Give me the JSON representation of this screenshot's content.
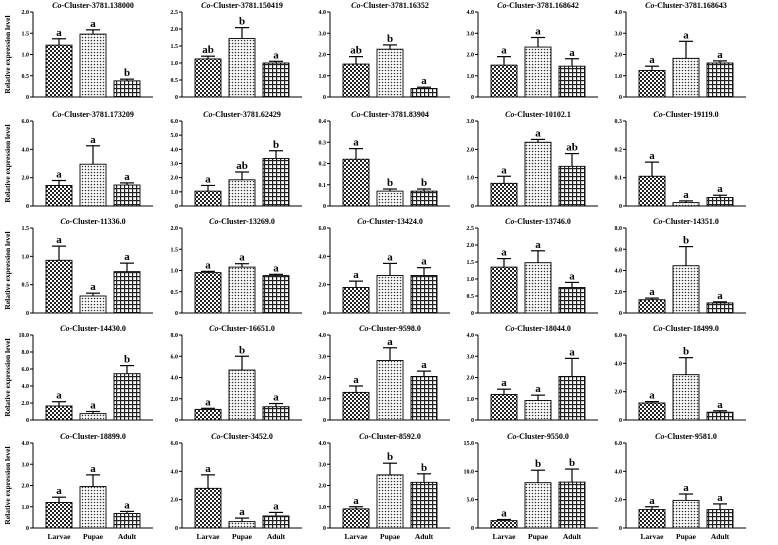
{
  "figure": {
    "ylabel": "Relative expression level",
    "categories": [
      "Larvae",
      "Pupae",
      "Adult"
    ]
  },
  "chart_data": [
    {
      "type": "bar",
      "title_prefix": "Co",
      "title_suffix": "-Cluster-3781.138000",
      "categories": [
        "Larvae",
        "Pupae",
        "Adult"
      ],
      "values": [
        1.22,
        1.48,
        0.38
      ],
      "errors": [
        0.15,
        0.1,
        0.04
      ],
      "letters": [
        "a",
        "a",
        "b"
      ],
      "ylim": [
        0,
        2.0
      ],
      "ticks": [
        "0",
        "0.5",
        "1.0",
        "1.5",
        "2.0"
      ]
    },
    {
      "type": "bar",
      "title_prefix": "Co",
      "title_suffix": "-Cluster-3781.150419",
      "categories": [
        "Larvae",
        "Pupae",
        "Adult"
      ],
      "values": [
        1.12,
        1.72,
        1.0
      ],
      "errors": [
        0.08,
        0.32,
        0.05
      ],
      "letters": [
        "ab",
        "b",
        "a"
      ],
      "ylim": [
        0,
        2.5
      ],
      "ticks": [
        "0",
        "0.5",
        "1.0",
        "1.5",
        "2.0",
        "2.5"
      ]
    },
    {
      "type": "bar",
      "title_prefix": "Co",
      "title_suffix": "-Cluster-3781.16352",
      "categories": [
        "Larvae",
        "Pupae",
        "Adult"
      ],
      "values": [
        1.55,
        2.25,
        0.4
      ],
      "errors": [
        0.35,
        0.2,
        0.06
      ],
      "letters": [
        "ab",
        "b",
        "a"
      ],
      "ylim": [
        0,
        4.0
      ],
      "ticks": [
        "0",
        "1.0",
        "2.0",
        "3.0",
        "4.0"
      ]
    },
    {
      "type": "bar",
      "title_prefix": "Co",
      "title_suffix": "-Cluster-3781.168642",
      "categories": [
        "Larvae",
        "Pupae",
        "Adult"
      ],
      "values": [
        1.5,
        2.35,
        1.45
      ],
      "errors": [
        0.4,
        0.45,
        0.35
      ],
      "letters": [
        "a",
        "a",
        "a"
      ],
      "ylim": [
        0,
        4.0
      ],
      "ticks": [
        "0",
        "1.0",
        "2.0",
        "3.0",
        "4.0"
      ]
    },
    {
      "type": "bar",
      "title_prefix": "Co",
      "title_suffix": "-Cluster-3781.168643",
      "categories": [
        "Larvae",
        "Pupae",
        "Adult"
      ],
      "values": [
        1.25,
        1.82,
        1.6
      ],
      "errors": [
        0.2,
        0.8,
        0.1
      ],
      "letters": [
        "a",
        "a",
        "a"
      ],
      "ylim": [
        0,
        4.0
      ],
      "ticks": [
        "0",
        "1.0",
        "2.0",
        "3.0",
        "4.0"
      ]
    },
    {
      "type": "bar",
      "title_prefix": "Co",
      "title_suffix": "-Cluster-3781.173209",
      "categories": [
        "Larvae",
        "Pupae",
        "Adult"
      ],
      "values": [
        1.45,
        2.95,
        1.48
      ],
      "errors": [
        0.35,
        1.3,
        0.15
      ],
      "letters": [
        "a",
        "a",
        "a"
      ],
      "ylim": [
        0,
        6.0
      ],
      "ticks": [
        "0",
        "2.0",
        "4.0",
        "6.0"
      ]
    },
    {
      "type": "bar",
      "title_prefix": "Co",
      "title_suffix": "-Cluster-3781.62429",
      "categories": [
        "Larvae",
        "Pupae",
        "Adult"
      ],
      "values": [
        1.05,
        1.85,
        3.35
      ],
      "errors": [
        0.4,
        0.55,
        0.55
      ],
      "letters": [
        "a",
        "ab",
        "b"
      ],
      "ylim": [
        0,
        6.0
      ],
      "ticks": [
        "0",
        "1.0",
        "2.0",
        "3.0",
        "4.0",
        "5.0",
        "6.0"
      ]
    },
    {
      "type": "bar",
      "title_prefix": "Co",
      "title_suffix": "-Cluster-3781.83904",
      "categories": [
        "Larvae",
        "Pupae",
        "Adult"
      ],
      "values": [
        0.22,
        0.07,
        0.07
      ],
      "errors": [
        0.05,
        0.01,
        0.01
      ],
      "letters": [
        "a",
        "b",
        "b"
      ],
      "ylim": [
        0,
        0.4
      ],
      "ticks": [
        "0",
        "0.1",
        "0.2",
        "0.3",
        "0.4"
      ]
    },
    {
      "type": "bar",
      "title_prefix": "Co",
      "title_suffix": "-Cluster-10102.1",
      "categories": [
        "Larvae",
        "Pupae",
        "Adult"
      ],
      "values": [
        0.8,
        2.25,
        1.4
      ],
      "errors": [
        0.25,
        0.1,
        0.45
      ],
      "letters": [
        "a",
        "a",
        "ab"
      ],
      "ylim": [
        0,
        3.0
      ],
      "ticks": [
        "0",
        "1.0",
        "2.0",
        "3.0"
      ]
    },
    {
      "type": "bar",
      "title_prefix": "Co",
      "title_suffix": "-Cluster-19119.0",
      "categories": [
        "Larvae",
        "Pupae",
        "Adult"
      ],
      "values": [
        0.105,
        0.012,
        0.03
      ],
      "errors": [
        0.05,
        0.006,
        0.008
      ],
      "letters": [
        "a",
        "a",
        "a"
      ],
      "ylim": [
        0,
        0.3
      ],
      "ticks": [
        "0",
        "0.1",
        "0.2",
        "0.3"
      ]
    },
    {
      "type": "bar",
      "title_prefix": "Co",
      "title_suffix": "-Cluster-11336.0",
      "categories": [
        "Larvae",
        "Pupae",
        "Adult"
      ],
      "values": [
        0.93,
        0.3,
        0.73
      ],
      "errors": [
        0.25,
        0.05,
        0.15
      ],
      "letters": [
        "a",
        "a",
        "a"
      ],
      "ylim": [
        0,
        1.5
      ],
      "ticks": [
        "0",
        "0.5",
        "1.0",
        "1.5"
      ]
    },
    {
      "type": "bar",
      "title_prefix": "Co",
      "title_suffix": "-Cluster-13269.0",
      "categories": [
        "Larvae",
        "Pupae",
        "Adult"
      ],
      "values": [
        0.95,
        1.08,
        0.88
      ],
      "errors": [
        0.03,
        0.08,
        0.03
      ],
      "letters": [
        "a",
        "a",
        "a"
      ],
      "ylim": [
        0,
        2.0
      ],
      "ticks": [
        "0",
        "0.5",
        "1.0",
        "1.5",
        "2.0"
      ]
    },
    {
      "type": "bar",
      "title_prefix": "Co",
      "title_suffix": "-Cluster-13424.0",
      "categories": [
        "Larvae",
        "Pupae",
        "Adult"
      ],
      "values": [
        1.8,
        2.65,
        2.65
      ],
      "errors": [
        0.45,
        0.85,
        0.55
      ],
      "letters": [
        "a",
        "a",
        "a"
      ],
      "ylim": [
        0,
        6.0
      ],
      "ticks": [
        "0",
        "2.0",
        "4.0",
        "6.0"
      ]
    },
    {
      "type": "bar",
      "title_prefix": "Co",
      "title_suffix": "-Cluster-13746.0",
      "categories": [
        "Larvae",
        "Pupae",
        "Adult"
      ],
      "values": [
        1.35,
        1.48,
        0.75
      ],
      "errors": [
        0.25,
        0.35,
        0.15
      ],
      "letters": [
        "a",
        "a",
        "a"
      ],
      "ylim": [
        0,
        2.5
      ],
      "ticks": [
        "0",
        "0.5",
        "1.0",
        "1.5",
        "2.0",
        "2.5"
      ]
    },
    {
      "type": "bar",
      "title_prefix": "Co",
      "title_suffix": "-Cluster-14351.0",
      "categories": [
        "Larvae",
        "Pupae",
        "Adult"
      ],
      "values": [
        1.25,
        4.45,
        0.95
      ],
      "errors": [
        0.15,
        1.8,
        0.1
      ],
      "letters": [
        "a",
        "b",
        "a"
      ],
      "ylim": [
        0,
        8.0
      ],
      "ticks": [
        "0",
        "2.0",
        "4.0",
        "6.0",
        "8.0"
      ]
    },
    {
      "type": "bar",
      "title_prefix": "Co",
      "title_suffix": "-Cluster-14430.0",
      "categories": [
        "Larvae",
        "Pupae",
        "Adult"
      ],
      "values": [
        1.65,
        0.75,
        5.45
      ],
      "errors": [
        0.5,
        0.25,
        0.95
      ],
      "letters": [
        "a",
        "a",
        "b"
      ],
      "ylim": [
        0,
        10.0
      ],
      "ticks": [
        "0",
        "2.0",
        "4.0",
        "6.0",
        "8.0",
        "10.0"
      ]
    },
    {
      "type": "bar",
      "title_prefix": "Co",
      "title_suffix": "-Cluster-16651.0",
      "categories": [
        "Larvae",
        "Pupae",
        "Adult"
      ],
      "values": [
        1.0,
        4.7,
        1.25
      ],
      "errors": [
        0.1,
        1.3,
        0.3
      ],
      "letters": [
        "a",
        "b",
        "a"
      ],
      "ylim": [
        0,
        8.0
      ],
      "ticks": [
        "0",
        "2.0",
        "4.0",
        "6.0",
        "8.0"
      ]
    },
    {
      "type": "bar",
      "title_prefix": "Co",
      "title_suffix": "-Cluster-9598.0",
      "categories": [
        "Larvae",
        "Pupae",
        "Adult"
      ],
      "values": [
        1.3,
        2.8,
        2.05
      ],
      "errors": [
        0.3,
        0.6,
        0.25
      ],
      "letters": [
        "a",
        "a",
        "a"
      ],
      "ylim": [
        0,
        4.0
      ],
      "ticks": [
        "0",
        "1.0",
        "2.0",
        "3.0",
        "4.0"
      ]
    },
    {
      "type": "bar",
      "title_prefix": "Co",
      "title_suffix": "-Cluster-18044.0",
      "categories": [
        "Larvae",
        "Pupae",
        "Adult"
      ],
      "values": [
        1.2,
        0.92,
        2.05
      ],
      "errors": [
        0.25,
        0.25,
        0.85
      ],
      "letters": [
        "a",
        "a",
        "a"
      ],
      "ylim": [
        0,
        4.0
      ],
      "ticks": [
        "0",
        "1.0",
        "2.0",
        "3.0",
        "4.0"
      ]
    },
    {
      "type": "bar",
      "title_prefix": "Co",
      "title_suffix": "-Cluster-18499.0",
      "categories": [
        "Larvae",
        "Pupae",
        "Adult"
      ],
      "values": [
        1.2,
        3.2,
        0.55
      ],
      "errors": [
        0.1,
        1.2,
        0.1
      ],
      "letters": [
        "a",
        "b",
        "a"
      ],
      "ylim": [
        0,
        6.0
      ],
      "ticks": [
        "0",
        "2.0",
        "4.0",
        "6.0"
      ]
    },
    {
      "type": "bar",
      "title_prefix": "Co",
      "title_suffix": "-Cluster-18899.0",
      "categories": [
        "Larvae",
        "Pupae",
        "Adult"
      ],
      "values": [
        1.2,
        1.95,
        0.68
      ],
      "errors": [
        0.25,
        0.55,
        0.1
      ],
      "letters": [
        "a",
        "a",
        "a"
      ],
      "ylim": [
        0,
        4.0
      ],
      "ticks": [
        "0",
        "1.0",
        "2.0",
        "3.0",
        "4.0"
      ]
    },
    {
      "type": "bar",
      "title_prefix": "Co",
      "title_suffix": "-Cluster-3452.0",
      "categories": [
        "Larvae",
        "Pupae",
        "Adult"
      ],
      "values": [
        2.8,
        0.45,
        0.85
      ],
      "errors": [
        0.95,
        0.25,
        0.25
      ],
      "letters": [
        "a",
        "a",
        "a"
      ],
      "ylim": [
        0,
        6.0
      ],
      "ticks": [
        "0",
        "2.0",
        "4.0",
        "6.0"
      ]
    },
    {
      "type": "bar",
      "title_prefix": "Co",
      "title_suffix": "-Cluster-8592.0",
      "categories": [
        "Larvae",
        "Pupae",
        "Adult"
      ],
      "values": [
        0.9,
        2.5,
        2.15
      ],
      "errors": [
        0.1,
        0.55,
        0.4
      ],
      "letters": [
        "a",
        "b",
        "b"
      ],
      "ylim": [
        0,
        4.0
      ],
      "ticks": [
        "0",
        "1.0",
        "2.0",
        "3.0",
        "4.0"
      ]
    },
    {
      "type": "bar",
      "title_prefix": "Co",
      "title_suffix": "-Cluster-9550.0",
      "categories": [
        "Larvae",
        "Pupae",
        "Adult"
      ],
      "values": [
        1.3,
        8.0,
        8.1
      ],
      "errors": [
        0.2,
        2.2,
        2.3
      ],
      "letters": [
        "a",
        "b",
        "b"
      ],
      "ylim": [
        0,
        15.0
      ],
      "ticks": [
        "0",
        "5.0",
        "10.0",
        "15.0"
      ]
    },
    {
      "type": "bar",
      "title_prefix": "Co",
      "title_suffix": "-Cluster-9581.0",
      "categories": [
        "Larvae",
        "Pupae",
        "Adult"
      ],
      "values": [
        1.3,
        1.95,
        1.3
      ],
      "errors": [
        0.2,
        0.45,
        0.4
      ],
      "letters": [
        "a",
        "a",
        "a"
      ],
      "ylim": [
        0,
        6.0
      ],
      "ticks": [
        "0",
        "2.0",
        "4.0",
        "6.0"
      ]
    }
  ]
}
